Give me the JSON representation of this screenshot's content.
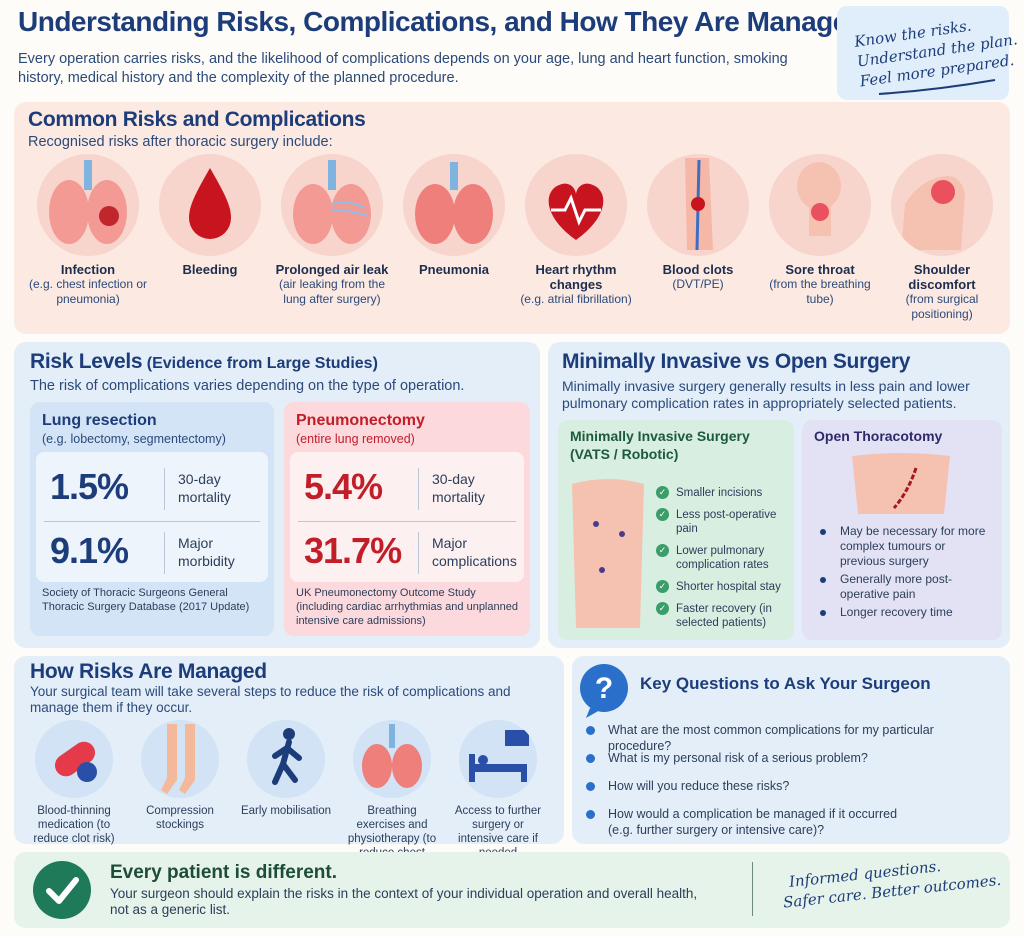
{
  "header": {
    "title": "Understanding Risks, Complications, and How They Are Managed",
    "intro": "Every operation carries risks, and the likelihood of complications depends on your age, lung and heart function, smoking history, medical history and the complexity of the planned procedure.",
    "tagline": [
      "Know the risks.",
      "Understand the plan.",
      "Feel more prepared."
    ]
  },
  "common": {
    "title": "Common Risks and Complications",
    "subtitle": "Recognised risks after thoracic surgery include:",
    "items": [
      {
        "name": "Infection",
        "desc": "(e.g. chest infection or pneumonia)",
        "icon": "infected-lungs-icon"
      },
      {
        "name": "Bleeding",
        "desc": "",
        "icon": "blood-drop-icon"
      },
      {
        "name": "Prolonged air leak",
        "desc": "(air leaking from the lung after surgery)",
        "icon": "air-leak-lungs-icon"
      },
      {
        "name": "Pneumonia",
        "desc": "",
        "icon": "lungs-icon"
      },
      {
        "name": "Heart rhythm changes",
        "desc": "(e.g. atrial fibrillation)",
        "icon": "heart-rhythm-icon"
      },
      {
        "name": "Blood clots",
        "desc": "(DVT/PE)",
        "icon": "leg-clot-icon"
      },
      {
        "name": "Sore throat",
        "desc": "(from the breathing tube)",
        "icon": "throat-icon"
      },
      {
        "name": "Shoulder discomfort",
        "desc": "(from surgical positioning)",
        "icon": "shoulder-icon"
      }
    ]
  },
  "levels": {
    "title": "Risk Levels",
    "title_extra": "(Evidence from Large Studies)",
    "subtitle": "The risk of complications varies depending on the type of operation.",
    "lung": {
      "title": "Lung resection",
      "subtitle": "(e.g. lobectomy, segmentectomy)",
      "stat1_value": "1.5%",
      "stat1_label": "30-day mortality",
      "stat2_value": "9.1%",
      "stat2_label": "Major morbidity",
      "source": "Society of Thoracic Surgeons General Thoracic Surgery Database (2017 Update)"
    },
    "pneumo": {
      "title": "Pneumonectomy",
      "subtitle": "(entire lung removed)",
      "stat1_value": "5.4%",
      "stat1_label": "30-day mortality",
      "stat2_value": "31.7%",
      "stat2_label": "Major complications",
      "source": "UK Pneumonectomy Outcome Study (including cardiac arrhythmias and unplanned intensive care admissions)"
    }
  },
  "surgery": {
    "title": "Minimally Invasive vs Open Surgery",
    "subtitle": "Minimally invasive surgery generally results in less pain and lower pulmonary complication rates in appropriately selected patients.",
    "mis_title": "Minimally Invasive Surgery",
    "mis_subtitle": "(VATS / Robotic)",
    "mis_points": [
      "Smaller incisions",
      "Less post-operative pain",
      "Lower pulmonary complication rates",
      "Shorter hospital stay",
      "Faster recovery (in selected patients)"
    ],
    "open_title": "Open Thoracotomy",
    "open_points": [
      "May be necessary for more complex tumours or previous surgery",
      "Generally more post-operative pain",
      "Longer recovery time"
    ]
  },
  "managed": {
    "title": "How Risks Are Managed",
    "subtitle": "Your surgical team will take several steps to reduce the risk of complications and manage them if they occur.",
    "items": [
      {
        "label": "Blood-thinning medication (to reduce clot risk)",
        "icon": "capsule-icon"
      },
      {
        "label": "Compression stockings",
        "icon": "stockings-icon"
      },
      {
        "label": "Early mobilisation",
        "icon": "walking-person-icon"
      },
      {
        "label": "Breathing exercises and physiotherapy (to reduce chest infection risk)",
        "icon": "lungs-icon"
      },
      {
        "label": "Access to further surgery or intensive care if needed",
        "icon": "hospital-bed-icon"
      }
    ]
  },
  "questions": {
    "title": "Key Questions to Ask Your Surgeon",
    "items": [
      "What are the most common complications for my particular procedure?",
      "What is my personal risk of a serious problem?",
      "How will you reduce these risks?",
      "How would a complication be managed if it occurred (e.g. further surgery or intensive care)?"
    ]
  },
  "footer": {
    "title": "Every patient is different.",
    "text": "Your surgeon should explain the risks in the context of your individual operation and overall health, not as a generic list.",
    "tagline": [
      "Informed questions.",
      "Safer care. Better outcomes."
    ]
  }
}
